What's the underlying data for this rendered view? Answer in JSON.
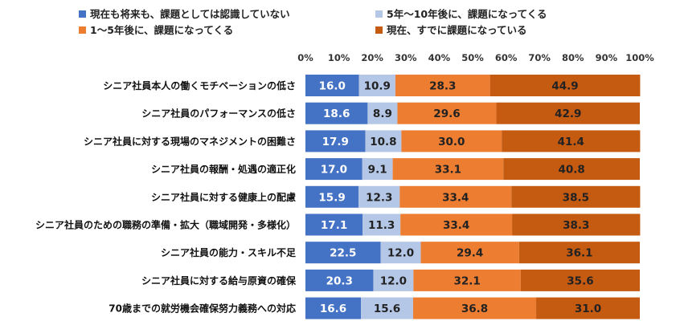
{
  "chart_data": {
    "type": "bar",
    "orientation": "horizontal",
    "stacked": true,
    "title": "",
    "xlabel": "",
    "ylabel": "",
    "xlim": [
      0,
      100
    ],
    "x_ticks": [
      "0%",
      "10%",
      "20%",
      "30%",
      "40%",
      "50%",
      "60%",
      "70%",
      "80%",
      "90%",
      "100%"
    ],
    "legend_position": "top",
    "categories": [
      "シニア社員本人の働くモチベーションの低さ",
      "シニア社員のパフォーマンスの低さ",
      "シニア社員に対する現場のマネジメントの困難さ",
      "シニア社員の報酬・処遇の適正化",
      "シニア社員に対する健康上の配慮",
      "シニア社員のための職務の準備・拡大（職域開発・多様化）",
      "シニア社員の能力・スキル不足",
      "シニア社員に対する給与原資の確保",
      "70歳までの就労機会確保努力義務への対応"
    ],
    "series": [
      {
        "name": "現在も将来も、課題としては認識していない",
        "color": "#4472c4",
        "text_color": "#ffffff",
        "values": [
          16.0,
          18.6,
          17.9,
          17.0,
          15.9,
          17.1,
          22.5,
          20.3,
          16.6
        ]
      },
      {
        "name": "5年～10年後に、課題になってくる",
        "color": "#b4c7e7",
        "text_color": "#222222",
        "values": [
          10.9,
          8.9,
          10.8,
          9.1,
          12.3,
          11.3,
          12.0,
          12.0,
          15.6
        ]
      },
      {
        "name": "1～5年後に、課題になってくる",
        "color": "#ed7d31",
        "text_color": "#222222",
        "values": [
          28.3,
          29.6,
          30.0,
          33.1,
          33.4,
          33.4,
          29.4,
          32.1,
          36.8
        ]
      },
      {
        "name": "現在、すでに課題になっている",
        "color": "#c55a11",
        "text_color": "#222222",
        "values": [
          44.9,
          42.9,
          41.4,
          40.8,
          38.5,
          38.3,
          36.1,
          35.6,
          31.0
        ]
      }
    ]
  }
}
